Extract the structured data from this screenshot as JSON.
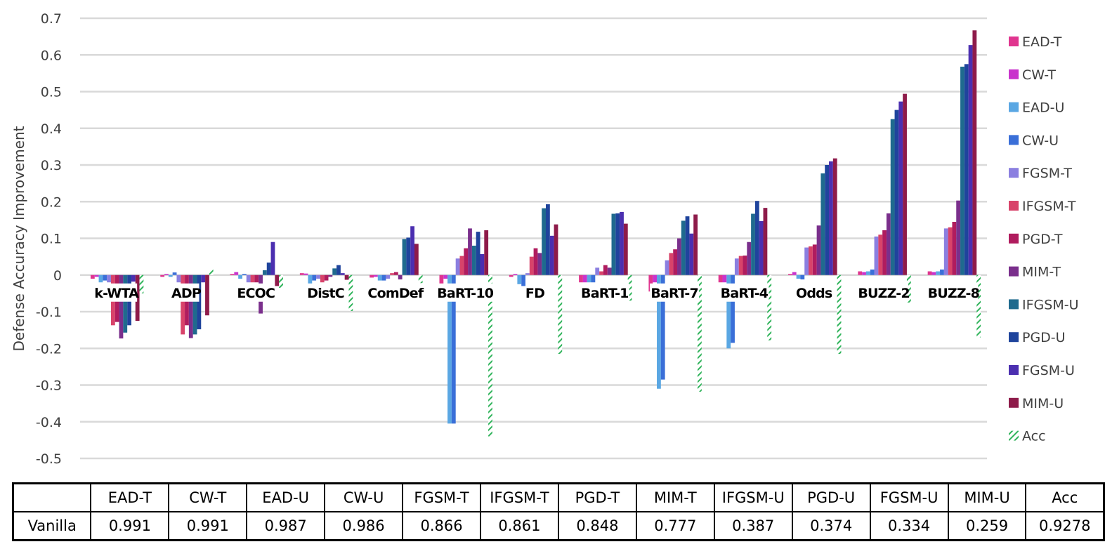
{
  "chart_data": {
    "type": "bar",
    "ylabel": "Defense Accuracy Improvement",
    "ylim": [
      -0.5,
      0.7
    ],
    "yticks": [
      "0.7",
      "0.6",
      "0.5",
      "0.4",
      "0.3",
      "0.2",
      "0.1",
      "0",
      "-0.1",
      "-0.2",
      "-0.3",
      "-0.4",
      "-0.5"
    ],
    "grid": true,
    "legend_position": "right",
    "categories": [
      "k-WTA",
      "ADP",
      "ECOC",
      "DistC",
      "ComDef",
      "BaRT-10",
      "FD",
      "BaRT-1",
      "BaRT-7",
      "BaRT-4",
      "Odds",
      "BUZZ-2",
      "BUZZ-8"
    ],
    "series": [
      {
        "name": "EAD-T",
        "color": "#e0358f",
        "values": [
          -0.01,
          -0.005,
          0.003,
          0.005,
          -0.007,
          -0.04,
          -0.005,
          -0.02,
          -0.045,
          -0.02,
          0.003,
          0.01,
          0.01
        ]
      },
      {
        "name": "CW-T",
        "color": "#c933cc",
        "values": [
          -0.005,
          0.003,
          0.008,
          0.004,
          -0.005,
          -0.01,
          0.003,
          -0.02,
          -0.02,
          -0.02,
          0.008,
          0.008,
          0.008
        ]
      },
      {
        "name": "EAD-U",
        "color": "#5aa7e3",
        "values": [
          -0.02,
          -0.005,
          -0.01,
          -0.03,
          -0.015,
          -0.405,
          -0.025,
          -0.02,
          -0.31,
          -0.2,
          -0.01,
          0.01,
          0.01
        ]
      },
      {
        "name": "CW-U",
        "color": "#3a6fd8",
        "values": [
          -0.015,
          0.007,
          0.003,
          -0.015,
          -0.015,
          -0.405,
          -0.03,
          -0.02,
          -0.285,
          -0.185,
          -0.012,
          0.015,
          0.015
        ]
      },
      {
        "name": "FGSM-T",
        "color": "#8b7fe0",
        "values": [
          -0.02,
          -0.02,
          -0.02,
          -0.01,
          -0.01,
          0.045,
          0.005,
          0.02,
          0.04,
          0.045,
          0.075,
          0.105,
          0.127
        ]
      },
      {
        "name": "IFGSM-T",
        "color": "#d8436a",
        "values": [
          -0.137,
          -0.162,
          -0.02,
          -0.02,
          0.005,
          0.052,
          0.05,
          0.01,
          0.06,
          0.052,
          0.078,
          0.11,
          0.13
        ]
      },
      {
        "name": "PGD-T",
        "color": "#b01c5e",
        "values": [
          -0.128,
          -0.137,
          -0.02,
          -0.015,
          0.008,
          0.073,
          0.073,
          0.027,
          0.07,
          0.053,
          0.083,
          0.122,
          0.145
        ]
      },
      {
        "name": "MIM-T",
        "color": "#7a2f8c",
        "values": [
          -0.173,
          -0.172,
          -0.105,
          -0.005,
          -0.012,
          0.127,
          0.06,
          0.02,
          0.1,
          0.09,
          0.135,
          0.168,
          0.203
        ]
      },
      {
        "name": "IFGSM-U",
        "color": "#1f6a8e",
        "values": [
          -0.157,
          -0.162,
          0.013,
          0.018,
          0.098,
          0.08,
          0.182,
          0.167,
          0.148,
          0.167,
          0.277,
          0.425,
          0.568
        ]
      },
      {
        "name": "PGD-U",
        "color": "#1f449c",
        "values": [
          -0.137,
          -0.148,
          0.034,
          0.027,
          0.102,
          0.118,
          0.193,
          0.168,
          0.16,
          0.202,
          0.3,
          0.45,
          0.575
        ]
      },
      {
        "name": "FGSM-U",
        "color": "#4b2fb0",
        "values": [
          -0.018,
          -0.02,
          0.09,
          0.005,
          0.133,
          0.057,
          0.107,
          0.172,
          0.113,
          0.147,
          0.31,
          0.473,
          0.627
        ]
      },
      {
        "name": "MIM-U",
        "color": "#8e1b4a",
        "values": [
          -0.125,
          -0.11,
          -0.03,
          -0.013,
          0.085,
          0.122,
          0.138,
          0.14,
          0.165,
          0.183,
          0.318,
          0.494,
          0.667
        ]
      },
      {
        "name": "Acc",
        "color": "#2fb35a",
        "hatched": true,
        "values": [
          -0.05,
          0.015,
          -0.035,
          -0.098,
          -0.022,
          -0.44,
          -0.215,
          -0.07,
          -0.318,
          -0.178,
          -0.215,
          -0.075,
          -0.17
        ]
      }
    ]
  },
  "table": {
    "headers": [
      "",
      "EAD-T",
      "CW-T",
      "EAD-U",
      "CW-U",
      "FGSM-T",
      "IFGSM-T",
      "PGD-T",
      "MIM-T",
      "IFGSM-U",
      "PGD-U",
      "FGSM-U",
      "MIM-U",
      "Acc"
    ],
    "row": [
      "Vanilla",
      "0.991",
      "0.991",
      "0.987",
      "0.986",
      "0.866",
      "0.861",
      "0.848",
      "0.777",
      "0.387",
      "0.374",
      "0.334",
      "0.259",
      "0.9278"
    ]
  }
}
